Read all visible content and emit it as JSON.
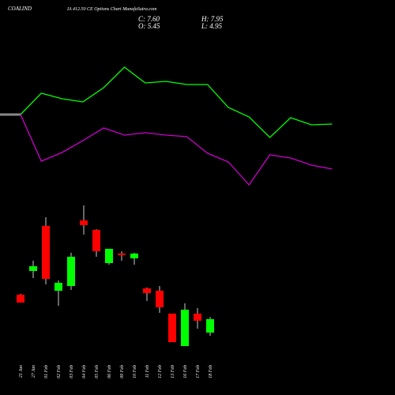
{
  "chart_data": {
    "type": "candlestick",
    "title": "COALIND",
    "subtitle": "IA 412.50 CE Options Chart MunafaSutra.com",
    "stats_labels": [
      "C: 7.60",
      "H: 7.95",
      "O: 5.45",
      "L: 4.95"
    ],
    "categories": [
      "21 Jan",
      "27 Jan",
      "01 Feb",
      "02 Feb",
      "03 Feb",
      "04 Feb",
      "05 Feb",
      "06 Feb",
      "09 Feb",
      "10 Feb",
      "11 Feb",
      "12 Feb",
      "13 Feb",
      "16 Feb",
      "17 Feb",
      "18 Feb"
    ],
    "open": [
      11.52,
      15.32,
      22.53,
      12.15,
      12.91,
      23.41,
      21.89,
      16.58,
      18.1,
      17.34,
      12.53,
      12.15,
      8.49,
      3.3,
      8.49,
      5.45
    ],
    "high": [
      11.65,
      16.96,
      23.92,
      13.8,
      18.23,
      25.82,
      22.0,
      18.86,
      18.48,
      18.23,
      12.66,
      12.91,
      8.49,
      10.13,
      9.37,
      7.95
    ],
    "low": [
      10.26,
      14.18,
      13.17,
      9.75,
      12.28,
      21.14,
      17.59,
      16.33,
      16.96,
      16.33,
      10.51,
      8.61,
      3.93,
      3.3,
      6.08,
      4.95
    ],
    "close": [
      10.26,
      16.08,
      14.05,
      13.42,
      17.59,
      22.65,
      18.48,
      18.86,
      17.85,
      18.1,
      11.77,
      9.5,
      3.93,
      9.12,
      7.35,
      7.6
    ],
    "up_color": "#00ff00",
    "down_color": "#ff0000",
    "ylim": [
      3,
      26
    ],
    "overlay": {
      "type": "line",
      "ylim": [
        0,
        260
      ],
      "series": [
        {
          "color": "#00ff00",
          "values": [
            115,
            142,
            135,
            131,
            149,
            175,
            155,
            157,
            153,
            153,
            124,
            112,
            86,
            111,
            102,
            103
          ]
        },
        {
          "color": "#cc00cc",
          "values": [
            115,
            56,
            67,
            82,
            98,
            89,
            92,
            89,
            87,
            66,
            55,
            26,
            64,
            60,
            51,
            46
          ]
        }
      ]
    }
  }
}
